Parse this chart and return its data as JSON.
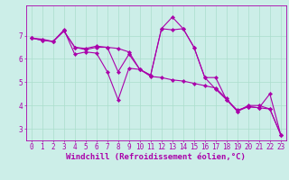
{
  "xlabel": "Windchill (Refroidissement éolien,°C)",
  "bg_color": "#cceee8",
  "line_color": "#aa00aa",
  "xlim": [
    -0.5,
    23.5
  ],
  "ylim": [
    2.5,
    8.3
  ],
  "yticks": [
    3,
    4,
    5,
    6,
    7
  ],
  "xticks": [
    0,
    1,
    2,
    3,
    4,
    5,
    6,
    7,
    8,
    9,
    10,
    11,
    12,
    13,
    14,
    15,
    16,
    17,
    18,
    19,
    20,
    21,
    22,
    23
  ],
  "line1_x": [
    0,
    1,
    2,
    3,
    4,
    5,
    6,
    7,
    8,
    9,
    10,
    11,
    12,
    13,
    14,
    15,
    16,
    17,
    18,
    19,
    20,
    21,
    22,
    23
  ],
  "line1_y": [
    6.9,
    6.8,
    6.75,
    7.25,
    6.2,
    6.3,
    6.25,
    5.45,
    4.25,
    5.6,
    5.55,
    5.3,
    7.3,
    7.8,
    7.3,
    6.5,
    5.2,
    5.2,
    4.25,
    3.8,
    3.95,
    3.9,
    3.85,
    2.75
  ],
  "line2_x": [
    0,
    1,
    2,
    3,
    4,
    5,
    6,
    7,
    8,
    9,
    10,
    11,
    12,
    13,
    14,
    15,
    16,
    17,
    18,
    19,
    20,
    21,
    22,
    23
  ],
  "line2_y": [
    6.9,
    6.85,
    6.75,
    7.2,
    6.5,
    6.45,
    6.55,
    6.5,
    6.45,
    6.3,
    5.55,
    5.25,
    5.2,
    5.1,
    5.05,
    4.95,
    4.85,
    4.75,
    4.3,
    3.75,
    4.0,
    4.0,
    3.85,
    2.75
  ],
  "line3_x": [
    0,
    1,
    2,
    3,
    4,
    5,
    6,
    7,
    8,
    9,
    10,
    11,
    12,
    13,
    14,
    15,
    16,
    17,
    18,
    19,
    20,
    21,
    22,
    23
  ],
  "line3_y": [
    6.9,
    6.8,
    6.75,
    7.2,
    6.5,
    6.4,
    6.5,
    6.5,
    5.45,
    6.2,
    5.55,
    5.3,
    7.3,
    7.25,
    7.3,
    6.5,
    5.2,
    4.7,
    4.25,
    3.75,
    3.95,
    3.9,
    4.5,
    2.75
  ],
  "grid_color": "#aaddcc",
  "tick_fontsize": 5.5,
  "label_fontsize": 6.5,
  "marker_size": 2.2,
  "line_width": 0.8
}
